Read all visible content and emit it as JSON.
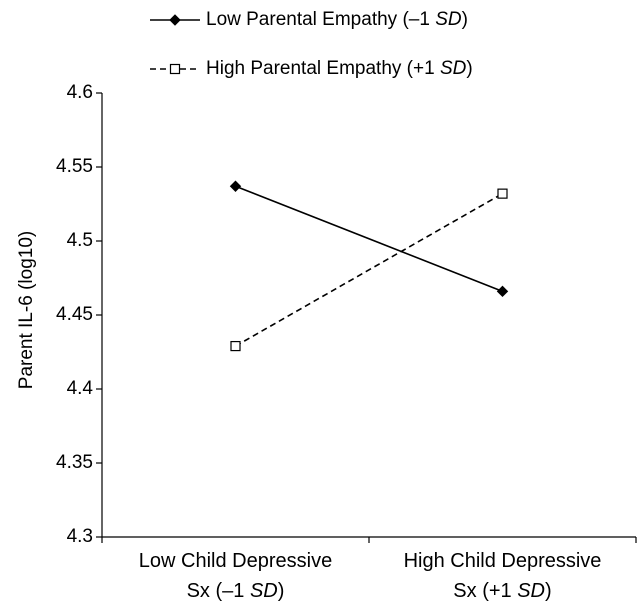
{
  "chart_data": {
    "type": "line",
    "categories": [
      {
        "line1": "Low Child Depressive",
        "line2_prefix": "Sx (–1 ",
        "line2_italic": "SD",
        "line2_suffix": ")"
      },
      {
        "line1": "High Child Depressive",
        "line2_prefix": "Sx (+1 ",
        "line2_italic": "SD",
        "line2_suffix": ")"
      }
    ],
    "series": [
      {
        "name_prefix": "Low Parental Empathy (–1 ",
        "name_italic": "SD",
        "name_suffix": ")",
        "values": [
          4.537,
          4.466
        ],
        "line_style": "solid",
        "marker": "filled-diamond",
        "color": "#000000"
      },
      {
        "name_prefix": "High Parental Empathy (+1 ",
        "name_italic": "SD",
        "name_suffix": ")",
        "values": [
          4.429,
          4.532
        ],
        "line_style": "dashed",
        "marker": "open-square",
        "color": "#000000"
      }
    ],
    "ylabel": "Parent IL-6 (log10)",
    "xlabel": "",
    "ylim": [
      4.3,
      4.6
    ],
    "yticks": [
      "4.3",
      "4.35",
      "4.4",
      "4.45",
      "4.5",
      "4.55",
      "4.6"
    ],
    "grid": false,
    "legend_position": "top"
  }
}
